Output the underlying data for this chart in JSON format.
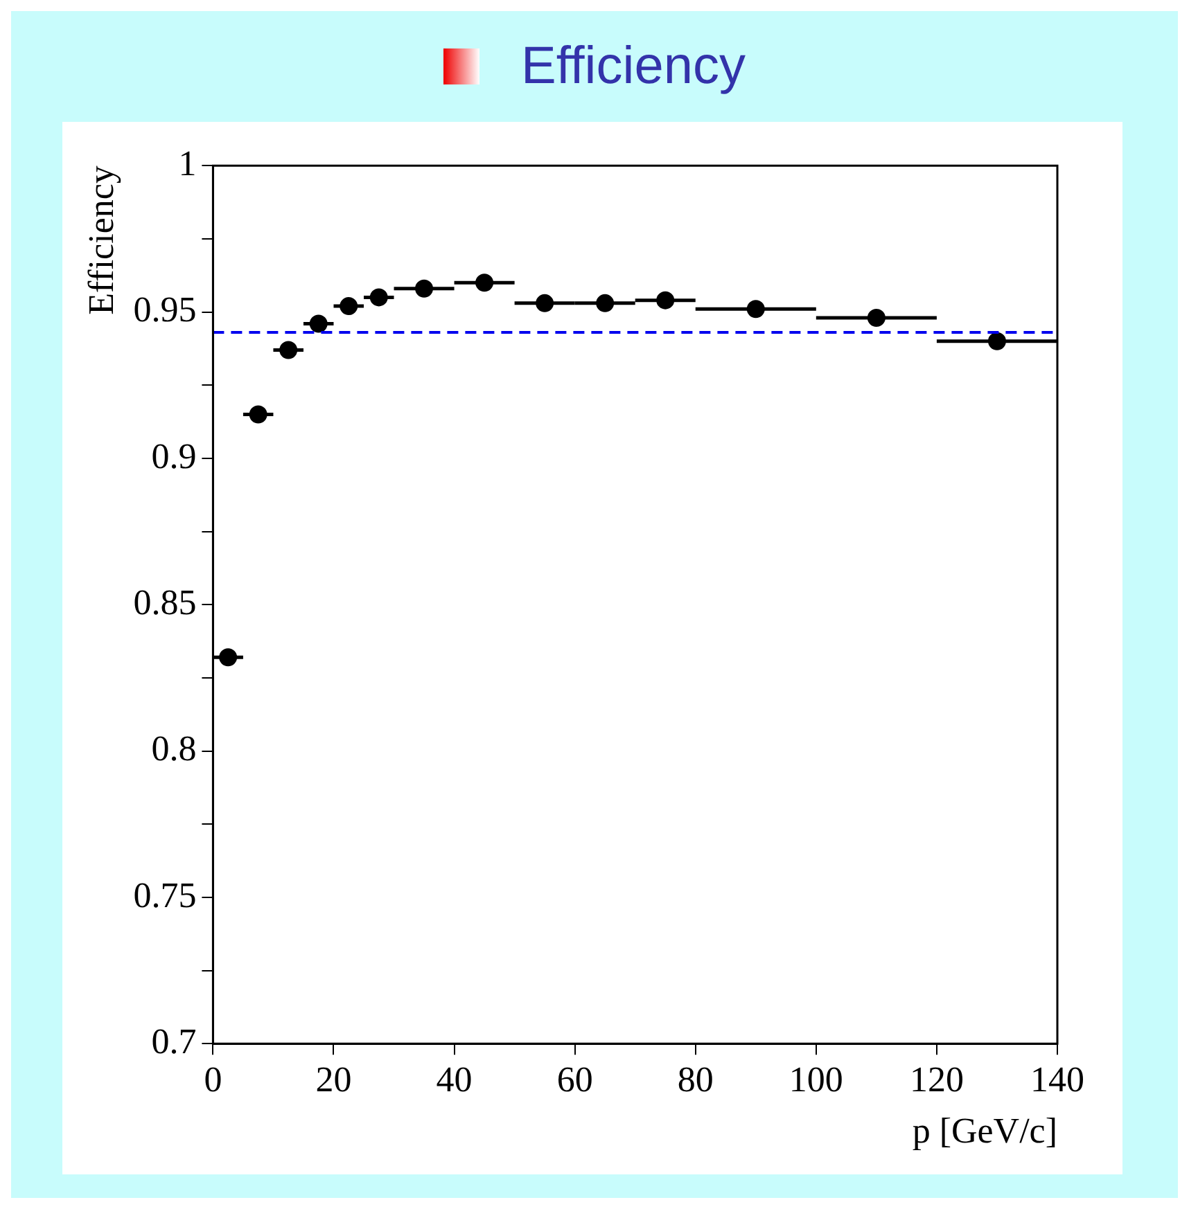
{
  "chart_data": {
    "type": "scatter",
    "title": "Efficiency",
    "xlabel": "p [GeV/c]",
    "ylabel": "Efficiency",
    "x": [
      2.5,
      7.5,
      12.5,
      17.5,
      22.5,
      27.5,
      35,
      45,
      55,
      65,
      75,
      90,
      110,
      130
    ],
    "series": [
      {
        "color": "#000000",
        "values": [
          0.832,
          0.915,
          0.937,
          0.946,
          0.952,
          0.955,
          0.958,
          0.96,
          0.953,
          0.953,
          0.954,
          0.951,
          0.948,
          0.94
        ],
        "xerrors": [
          2.5,
          2.5,
          2.5,
          2.5,
          2.5,
          2.5,
          5,
          5,
          5,
          5,
          5,
          10,
          10,
          10
        ]
      }
    ],
    "xlim": [
      0,
      140
    ],
    "xticks": [
      0,
      20,
      40,
      60,
      80,
      100,
      120,
      140
    ],
    "ylim": [
      0.7,
      1
    ],
    "yticks": [
      0.7,
      {
        "value": 0.725,
        "label": null
      },
      0.75,
      {
        "value": 0.775,
        "label": null
      },
      0.8,
      {
        "value": 0.825,
        "label": null
      },
      0.85,
      {
        "value": 0.875,
        "label": null
      },
      0.9,
      {
        "value": 0.925,
        "label": null
      },
      0.95,
      {
        "value": 0.975,
        "label": null
      },
      1
    ],
    "ref_lines": [
      {
        "axis": "y",
        "value": 0.943,
        "color": "#0000ee",
        "line_style": "dashed"
      }
    ],
    "marker": "circle",
    "grid": false,
    "legend": false
  }
}
